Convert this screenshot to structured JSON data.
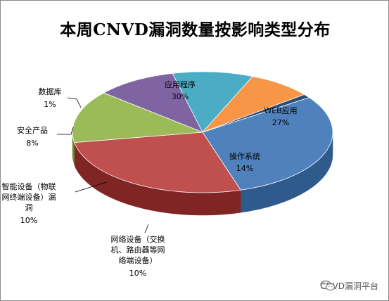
{
  "chart_data": {
    "type": "pie",
    "title": "本周CNVD漏洞数量按影响类型分布",
    "three_d": true,
    "slices": [
      {
        "label": "应用程序",
        "value": 30,
        "pct": "30%",
        "color": "#4f81bd",
        "side": "#2f5b8c"
      },
      {
        "label": "WEB应用",
        "value": 27,
        "pct": "27%",
        "color": "#c0504d",
        "side": "#7f2523"
      },
      {
        "label": "操作系统",
        "value": 14,
        "pct": "14%",
        "color": "#9bbb59",
        "side": "#6a8a33"
      },
      {
        "label": "网络设备（交换机、路由器等网络端设备）",
        "value": 10,
        "pct": "10%",
        "color": "#8064a2",
        "side": "#54407a"
      },
      {
        "label": "智能设备（物联网终端设备）漏洞",
        "value": 10,
        "pct": "10%",
        "color": "#4bacc6",
        "side": "#2a7c93"
      },
      {
        "label": "安全产品",
        "value": 8,
        "pct": "8%",
        "color": "#f79646",
        "side": "#b56518"
      },
      {
        "label": "数据库",
        "value": 1,
        "pct": "1%",
        "color": "#2c4d75",
        "side": "#1b324f"
      }
    ]
  },
  "watermark": {
    "text": "CNVD漏洞平台",
    "icon": "wechat-icon"
  }
}
